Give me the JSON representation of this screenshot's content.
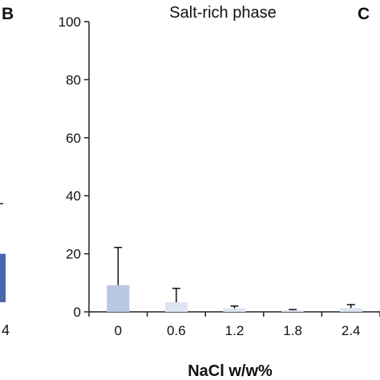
{
  "panels": {
    "left_label": "B",
    "right_label": "C"
  },
  "colors": {
    "prev_panel_bar": "#4a66a8",
    "bar_dark": "#b8c7e3",
    "bar_light": "#dde4f2",
    "axis": "#222222",
    "error": "#111111"
  },
  "chart_data": {
    "type": "bar",
    "title": "Salt-rich phase",
    "xlabel": "NaCl w/w%",
    "ylabel": "",
    "categories": [
      "0",
      "0.6",
      "1.2",
      "1.8",
      "2.4"
    ],
    "values": [
      9.2,
      3.3,
      1.2,
      0.5,
      1.3
    ],
    "errors": [
      13,
      4.8,
      0.8,
      0.3,
      1.2
    ],
    "ylim": [
      0,
      100
    ],
    "yticks": [
      "0",
      "20",
      "40",
      "60",
      "80",
      "100"
    ],
    "grid": false,
    "legend": "none"
  },
  "prev_panel": {
    "tick_label": "4",
    "bar_value": 20
  }
}
